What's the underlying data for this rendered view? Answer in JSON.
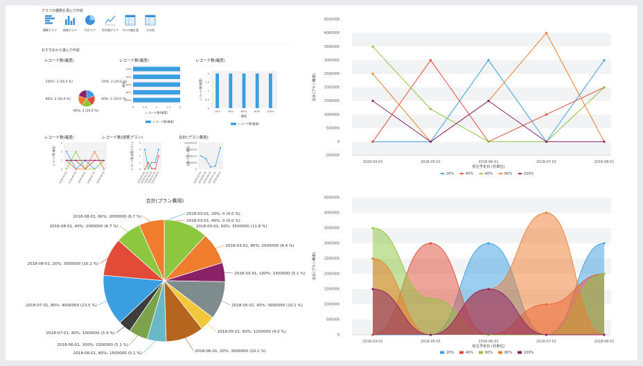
{
  "header": {
    "pick_type_label": "グラフの種類を選んで作成",
    "recommended_label": "おすすめから選んで作成"
  },
  "chart_types": [
    {
      "label": "横棒グラフ",
      "icon": "hbar-chart-icon"
    },
    {
      "label": "縦棒グラフ",
      "icon": "vbar-chart-icon"
    },
    {
      "label": "円グラフ",
      "icon": "pie-chart-icon"
    },
    {
      "label": "折れ線グラフ",
      "icon": "line-chart-icon"
    },
    {
      "label": "クロス集計表",
      "icon": "crosstab-table-icon"
    },
    {
      "label": "その他",
      "icon": "other-table-icon"
    }
  ],
  "colors": {
    "c20": "#3a9fe0",
    "c40": "#e24b37",
    "c60": "#8dc63f",
    "c80": "#f07c2e",
    "c100": "#8a2167",
    "grey": "#7f8c8d",
    "gold": "#f2c83a",
    "brown": "#b5651d",
    "teal": "#6ab7c6",
    "olive": "#7ca34b",
    "dark": "#3d3d3d"
  },
  "thumbnails": [
    {
      "title": "レコード数(確度)",
      "chart_data": {
        "type": "pie",
        "labels": [
          "20%: 2 (20.0 %)",
          "40%: 2 (20.0 %)",
          "60%: 2 (20.0 %)",
          "80%: 2 (20.0 %)",
          "100%: 2 (20.0 %)"
        ],
        "values": [
          2,
          2,
          2,
          2,
          2
        ]
      }
    },
    {
      "title": "レコード数(確度)",
      "chart_data": {
        "type": "bar",
        "orientation": "horizontal",
        "categories": [
          "20%",
          "40%",
          "60%",
          "80%",
          "100%"
        ],
        "values": [
          2,
          2,
          2,
          2,
          2
        ],
        "xlabel": "レコード数(確度)",
        "ylabel": "確度",
        "x_ticks": [
          "0",
          "0.5",
          "1",
          "1.5",
          "2"
        ],
        "legend": "レコード数(確度)"
      }
    },
    {
      "title": "レコード数(確度)",
      "chart_data": {
        "type": "bar",
        "orientation": "vertical",
        "categories": [
          "20%",
          "40%",
          "60%",
          "80%",
          "100%"
        ],
        "values": [
          2,
          2,
          2,
          2,
          2
        ],
        "xlabel": "確度",
        "ylabel": "レコード数(確度)",
        "y_ticks": [
          "0",
          "0.5",
          "1",
          "1.5",
          "2"
        ],
        "legend": "レコード数(確度)"
      }
    },
    {
      "title": "レコード数(確度)",
      "chart_data": {
        "type": "line",
        "ylabel": "レコード数(確度)",
        "y_ticks": [
          "0",
          "1",
          "2",
          "3"
        ],
        "x_ticks": [
          "2018-03-01",
          "2018-05-01",
          "2018-06-01",
          "2018-07-01",
          "2018-08-01"
        ],
        "series": [
          {
            "color": "#3a9fe0",
            "values": [
              2,
              0,
              1,
              0,
              1
            ]
          },
          {
            "color": "#e24b37",
            "values": [
              1,
              1,
              0,
              1,
              1
            ]
          },
          {
            "color": "#8dc63f",
            "values": [
              0,
              2,
              0,
              0,
              1
            ]
          },
          {
            "color": "#f07c2e",
            "values": [
              1,
              0,
              0,
              2,
              0
            ]
          },
          {
            "color": "#8a2167",
            "values": [
              1,
              1,
              1,
              1,
              1
            ]
          }
        ]
      }
    },
    {
      "title": "レコード数(提案プラン)",
      "chart_data": {
        "type": "line",
        "ylabel": "レコード数(提案プラン)",
        "y_ticks": [
          "0",
          "1",
          "2",
          "3",
          "4"
        ],
        "x_ticks": [
          "2018-03-01",
          "2018-05-01",
          "2018-06-01",
          "2018-07-01",
          "2018-08-01"
        ],
        "series": [
          {
            "color": "#3a9fe0",
            "values": [
              3,
              0.1,
              1,
              1,
              3
            ]
          },
          {
            "color": "#e24b37",
            "values": [
              0,
              1,
              0.1,
              0,
              2
            ]
          }
        ]
      }
    },
    {
      "title": "合計(プラン費用)",
      "chart_data": {
        "type": "line",
        "ylabel": "合計(プラン費用)",
        "y_ticks": [
          "0",
          "2500000",
          "5000000",
          "7500000",
          "10000000"
        ],
        "x_ticks": [
          "2018-03-01",
          "2018-05-01",
          "2018-06-01",
          "2018-07-01",
          "2018-08-01"
        ],
        "series": [
          {
            "color": "#3a9fe0",
            "values": [
              5000000,
              4000000,
              800000,
              1200000,
              8200000
            ]
          }
        ]
      }
    }
  ],
  "big_pie": {
    "title": "合計(プラン費用)",
    "chart_data": {
      "type": "pie",
      "slices": [
        {
          "label": "2018-03-01, 20%: 0 (0.0 %)",
          "value": 0.001,
          "color": "#3a9fe0"
        },
        {
          "label": "2018-03-01, 40%: 0 (0.0 %)",
          "value": 0.001,
          "color": "#e24b37"
        },
        {
          "label": "2018-03-01, 60%: 3500000 (11.8 %)",
          "value": 3500000,
          "color": "#8dc63f"
        },
        {
          "label": "2018-03-01, 80%: 2500000 (8.4 %)",
          "value": 2500000,
          "color": "#f07c2e"
        },
        {
          "label": "2018-03-01, 100%: 1500000 (5.1 %)",
          "value": 1500000,
          "color": "#8a2167"
        },
        {
          "label": "2018-05-01, 40%: 3000000 (10.1 %)",
          "value": 3000000,
          "color": "#7f8c8d"
        },
        {
          "label": "2018-05-01, 60%: 1200000 (4.0 %)",
          "value": 1200000,
          "color": "#f2c83a"
        },
        {
          "label": "2018-06-01, 20%: 3000000 (10.1 %)",
          "value": 3000000,
          "color": "#b5651d"
        },
        {
          "label": "2018-06-01, 80%: 1500000 (5.1 %)",
          "value": 1500000,
          "color": "#6ab7c6"
        },
        {
          "label": "2018-06-01, 100%: 1500000 (5.1 %)",
          "value": 1500000,
          "color": "#7ca34b"
        },
        {
          "label": "2018-07-01, 40%: 1000000 (3.4 %)",
          "value": 1000000,
          "color": "#3d3d3d"
        },
        {
          "label": "2018-07-01, 80%: 4000000 (13.5 %)",
          "value": 4000000,
          "color": "#3a9fe0"
        },
        {
          "label": "2018-08-01, 20%: 3000000 (10.1 %)",
          "value": 3000000,
          "color": "#e24b37"
        },
        {
          "label": "2018-08-01, 40%: 2000000 (6.7 %)",
          "value": 2000000,
          "color": "#8dc63f"
        },
        {
          "label": "2018-08-01, 60%: 2000000 (6.7 %)",
          "value": 2000000,
          "color": "#f07c2e"
        }
      ]
    }
  },
  "line_chart": {
    "chart_data": {
      "type": "line",
      "ylabel": "合計(プラン費用)",
      "xlabel": "受注予定日 (月単位)",
      "ylim": [
        -500000,
        4500000
      ],
      "y_ticks": [
        "-500000",
        "0",
        "500000",
        "1000000",
        "1500000",
        "2000000",
        "2500000",
        "3000000",
        "3500000",
        "4000000",
        "4500000"
      ],
      "categories": [
        "2018-03-01",
        "2018-05-01",
        "2018-06-01",
        "2018-07-01",
        "2018-08-01"
      ],
      "series": [
        {
          "name": "20%",
          "color": "#3a9fe0",
          "values": [
            0,
            0,
            3000000,
            0,
            3000000
          ]
        },
        {
          "name": "40%",
          "color": "#e24b37",
          "values": [
            0,
            3000000,
            0,
            1000000,
            2000000
          ]
        },
        {
          "name": "60%",
          "color": "#8dc63f",
          "values": [
            3500000,
            1200000,
            0,
            0,
            2000000
          ]
        },
        {
          "name": "80%",
          "color": "#f07c2e",
          "values": [
            2500000,
            0,
            1500000,
            4000000,
            0
          ]
        },
        {
          "name": "100%",
          "color": "#8a2167",
          "values": [
            1500000,
            0,
            1500000,
            0,
            0
          ]
        }
      ],
      "legend": "bottom"
    }
  },
  "area_chart": {
    "chart_data": {
      "type": "area",
      "ylabel": "合計(プラン費用)",
      "xlabel": "受注予定日 (月単位)",
      "ylim": [
        0,
        4500000
      ],
      "y_ticks": [
        "0",
        "500000",
        "1000000",
        "1500000",
        "2000000",
        "2500000",
        "3000000",
        "3500000",
        "4000000",
        "4500000"
      ],
      "categories": [
        "2018-03-01",
        "2018-05-01",
        "2018-06-01",
        "2018-07-01",
        "2018-08-01"
      ],
      "series": [
        {
          "name": "20%",
          "color": "#3a9fe0",
          "values": [
            0,
            0,
            3000000,
            0,
            3000000
          ]
        },
        {
          "name": "40%",
          "color": "#e24b37",
          "values": [
            0,
            3000000,
            0,
            1000000,
            2000000
          ]
        },
        {
          "name": "60%",
          "color": "#8dc63f",
          "values": [
            3500000,
            1200000,
            0,
            0,
            2000000
          ]
        },
        {
          "name": "80%",
          "color": "#f07c2e",
          "values": [
            2500000,
            0,
            1500000,
            4000000,
            0
          ]
        },
        {
          "name": "100%",
          "color": "#8a2167",
          "values": [
            1500000,
            0,
            1500000,
            0,
            0
          ]
        }
      ],
      "legend": "bottom"
    }
  }
}
